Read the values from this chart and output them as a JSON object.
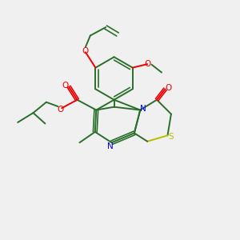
{
  "bg_color": "#f0f0f0",
  "bond_color": "#2a6e2a",
  "n_color": "#0000ee",
  "s_color": "#bbbb00",
  "o_color": "#ee0000",
  "figsize": [
    3.0,
    3.0
  ],
  "dpi": 100,
  "xlim": [
    0,
    10
  ],
  "ylim": [
    0,
    10
  ]
}
